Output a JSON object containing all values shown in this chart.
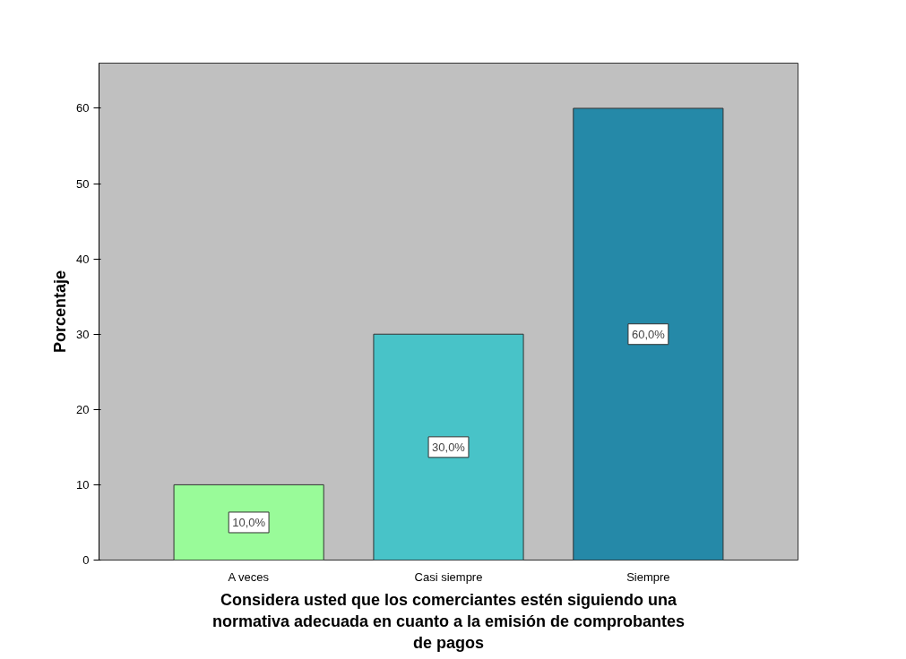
{
  "chart_data": {
    "type": "bar",
    "xlabel": "Considera usted que los comerciantes estén siguiendo una normativa adecuada en cuanto a la emisión de comprobantes de pagos",
    "ylabel": "Porcentaje",
    "categories": [
      "A veces",
      "Casi siempre",
      "Siempre"
    ],
    "values": [
      10,
      30,
      60
    ],
    "colors": [
      "#99fb99",
      "#48c3c8",
      "#2589a8"
    ],
    "value_labels": [
      "10,0%",
      "30,0%",
      "60,0%"
    ],
    "ylim": [
      0,
      66
    ],
    "yticks": [
      0,
      10,
      20,
      30,
      40,
      50,
      60
    ],
    "grid": false
  }
}
